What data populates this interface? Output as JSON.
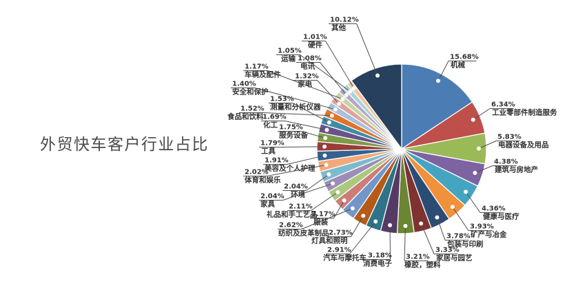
{
  "title": "外贸快车客户行业占比",
  "chart_data": {
    "type": "pie",
    "title": "外贸快车客户行业占比",
    "unit": "%",
    "total": 100.0,
    "order": "clockwise-from-top, descending, other-last",
    "legend": "none",
    "slices": [
      {
        "label": "机械",
        "value": 15.68,
        "display": "15.68%",
        "color": "#4C7CB4"
      },
      {
        "label": "工业零部件制造服务",
        "value": 6.34,
        "display": "6.34%",
        "color": "#BE4F4B"
      },
      {
        "label": "电器设备及用品",
        "value": 5.83,
        "display": "5.83%",
        "color": "#9ABA58"
      },
      {
        "label": "建筑与房地产",
        "value": 4.38,
        "display": "4.38%",
        "color": "#7D63A1"
      },
      {
        "label": "健康与医疗",
        "value": 4.36,
        "display": "4.36%",
        "color": "#45A5C1"
      },
      {
        "label": "矿产与冶金",
        "value": 3.93,
        "display": "3.93%",
        "color": "#F0913C"
      },
      {
        "label": "包装与印刷",
        "value": 3.78,
        "display": "3.78%",
        "color": "#2B4D75"
      },
      {
        "label": "家居与园艺",
        "value": 3.33,
        "display": "3.33%",
        "color": "#7E3331"
      },
      {
        "label": "橡胶，塑料",
        "value": 3.21,
        "display": "3.21%",
        "color": "#6B8532"
      },
      {
        "label": "消费电子",
        "value": 3.18,
        "display": "3.18%",
        "color": "#563A66"
      },
      {
        "label": "汽车与摩托车",
        "value": 2.91,
        "display": "2.91%",
        "color": "#2E7388"
      },
      {
        "label": "灯具和照明",
        "value": 2.73,
        "display": "2.73%",
        "color": "#B55A18"
      },
      {
        "label": "纺织及皮革制品",
        "value": 2.62,
        "display": "2.62%",
        "color": "#7396C9"
      },
      {
        "label": "服装",
        "value": 2.17,
        "display": "2.17%",
        "color": "#CC7D7A"
      },
      {
        "label": "礼品和手工艺品",
        "value": 2.11,
        "display": "2.11%",
        "color": "#ABC97E"
      },
      {
        "label": "家具",
        "value": 2.04,
        "display": "2.04%",
        "color": "#9C8DB8"
      },
      {
        "label": "环境",
        "value": 2.04,
        "display": "2.04%",
        "color": "#7EBACD"
      },
      {
        "label": "体育和娱乐",
        "value": 2.02,
        "display": "2.02%",
        "color": "#F2A979"
      },
      {
        "label": "美容及个人护理",
        "value": 1.91,
        "display": "1.91%",
        "color": "#35618F"
      },
      {
        "label": "工具",
        "value": 1.79,
        "display": "1.79%",
        "color": "#9A3C38"
      },
      {
        "label": "服务设备",
        "value": 1.75,
        "display": "1.75%",
        "color": "#7F9A48"
      },
      {
        "label": "化工",
        "value": 1.69,
        "display": "1.69%",
        "color": "#69538A"
      },
      {
        "label": "测量和分析仪器",
        "value": 1.53,
        "display": "1.53%",
        "color": "#3E8BA3"
      },
      {
        "label": "食品和饮料",
        "value": 1.52,
        "display": "1.52%",
        "color": "#E1742C"
      },
      {
        "label": "安全和保护",
        "value": 1.4,
        "display": "1.40%",
        "color": "#A7C0DE"
      },
      {
        "label": "家电",
        "value": 1.32,
        "display": "1.32%",
        "color": "#DCA3A0"
      },
      {
        "label": "车辆及配件",
        "value": 1.17,
        "display": "1.17%",
        "color": "#C6D6A2"
      },
      {
        "label": "电讯",
        "value": 1.08,
        "display": "1.08%",
        "color": "#B5A8CB"
      },
      {
        "label": "运输",
        "value": 1.05,
        "display": "1.05%",
        "color": "#A9D4D9"
      },
      {
        "label": "硬件",
        "value": 1.01,
        "display": "1.01%",
        "color": "#F5C49E"
      },
      {
        "label": "其他",
        "value": 10.12,
        "display": "10.12%",
        "color": "#26405E"
      }
    ]
  }
}
